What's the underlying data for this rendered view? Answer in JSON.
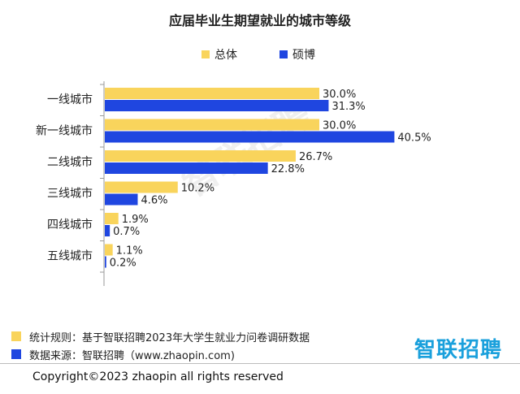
{
  "chart_data": {
    "type": "bar",
    "orientation": "horizontal",
    "title": "应届毕业生期望就业的城市等级",
    "categories": [
      "一线城市",
      "新一线城市",
      "二线城市",
      "三线城市",
      "四线城市",
      "五线城市"
    ],
    "series": [
      {
        "name": "总体",
        "color": "#f9d45c",
        "values": [
          30.0,
          30.0,
          26.7,
          10.2,
          1.9,
          1.1
        ],
        "labels": [
          "30.0%",
          "30.0%",
          "26.7%",
          "10.2%",
          "1.9%",
          "1.1%"
        ]
      },
      {
        "name": "硕博",
        "color": "#1f46e0",
        "values": [
          31.3,
          40.5,
          22.8,
          4.6,
          0.7,
          0.2
        ],
        "labels": [
          "31.3%",
          "40.5%",
          "22.8%",
          "4.6%",
          "0.7%",
          "0.2%"
        ]
      }
    ],
    "xlim": [
      0,
      100
    ],
    "grid": false,
    "legend_position": "top"
  },
  "watermark": "智联招聘",
  "notes": [
    {
      "text": "统计规则：基于智联招聘2023年大学生就业力问卷调研数据",
      "color": "#f9d45c"
    },
    {
      "text": "数据来源：智联招聘（www.zhaopin.com)",
      "color": "#1f46e0"
    }
  ],
  "logo_text": "智联招聘",
  "copyright": "Copyright©2023 zhaopin all rights reserved"
}
